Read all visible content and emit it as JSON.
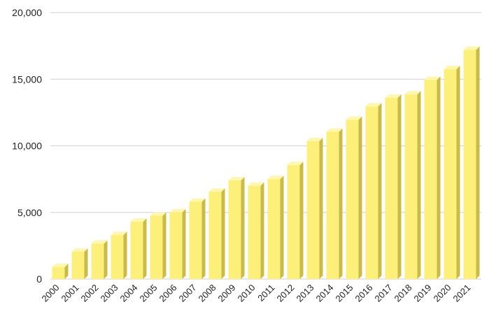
{
  "chart_data": {
    "type": "bar",
    "style": "3d",
    "title": "",
    "xlabel": "",
    "ylabel": "",
    "categories": [
      "2000",
      "2001",
      "2002",
      "2003",
      "2004",
      "2005",
      "2006",
      "2007",
      "2008",
      "2009",
      "2010",
      "2011",
      "2012",
      "2013",
      "2014",
      "2015",
      "2016",
      "2017",
      "2018",
      "2019",
      "2020",
      "2021"
    ],
    "values": [
      900,
      2050,
      2650,
      3300,
      4300,
      4750,
      5000,
      5800,
      6550,
      7400,
      7000,
      7500,
      8550,
      10350,
      11050,
      11950,
      12950,
      13600,
      13850,
      14950,
      15750,
      17200
    ],
    "ylim": [
      0,
      20000
    ],
    "yticks": [
      0,
      5000,
      10000,
      15000,
      20000
    ],
    "ytick_labels": [
      "0",
      "5,000",
      "10,000",
      "15,000",
      "20,000"
    ],
    "grid": true,
    "legend": "none",
    "colors": {
      "bar_front": "#fdf07a",
      "bar_side": "#c8bb4a",
      "bar_top": "#fff7b0",
      "grid": "#d0d0d0"
    }
  }
}
